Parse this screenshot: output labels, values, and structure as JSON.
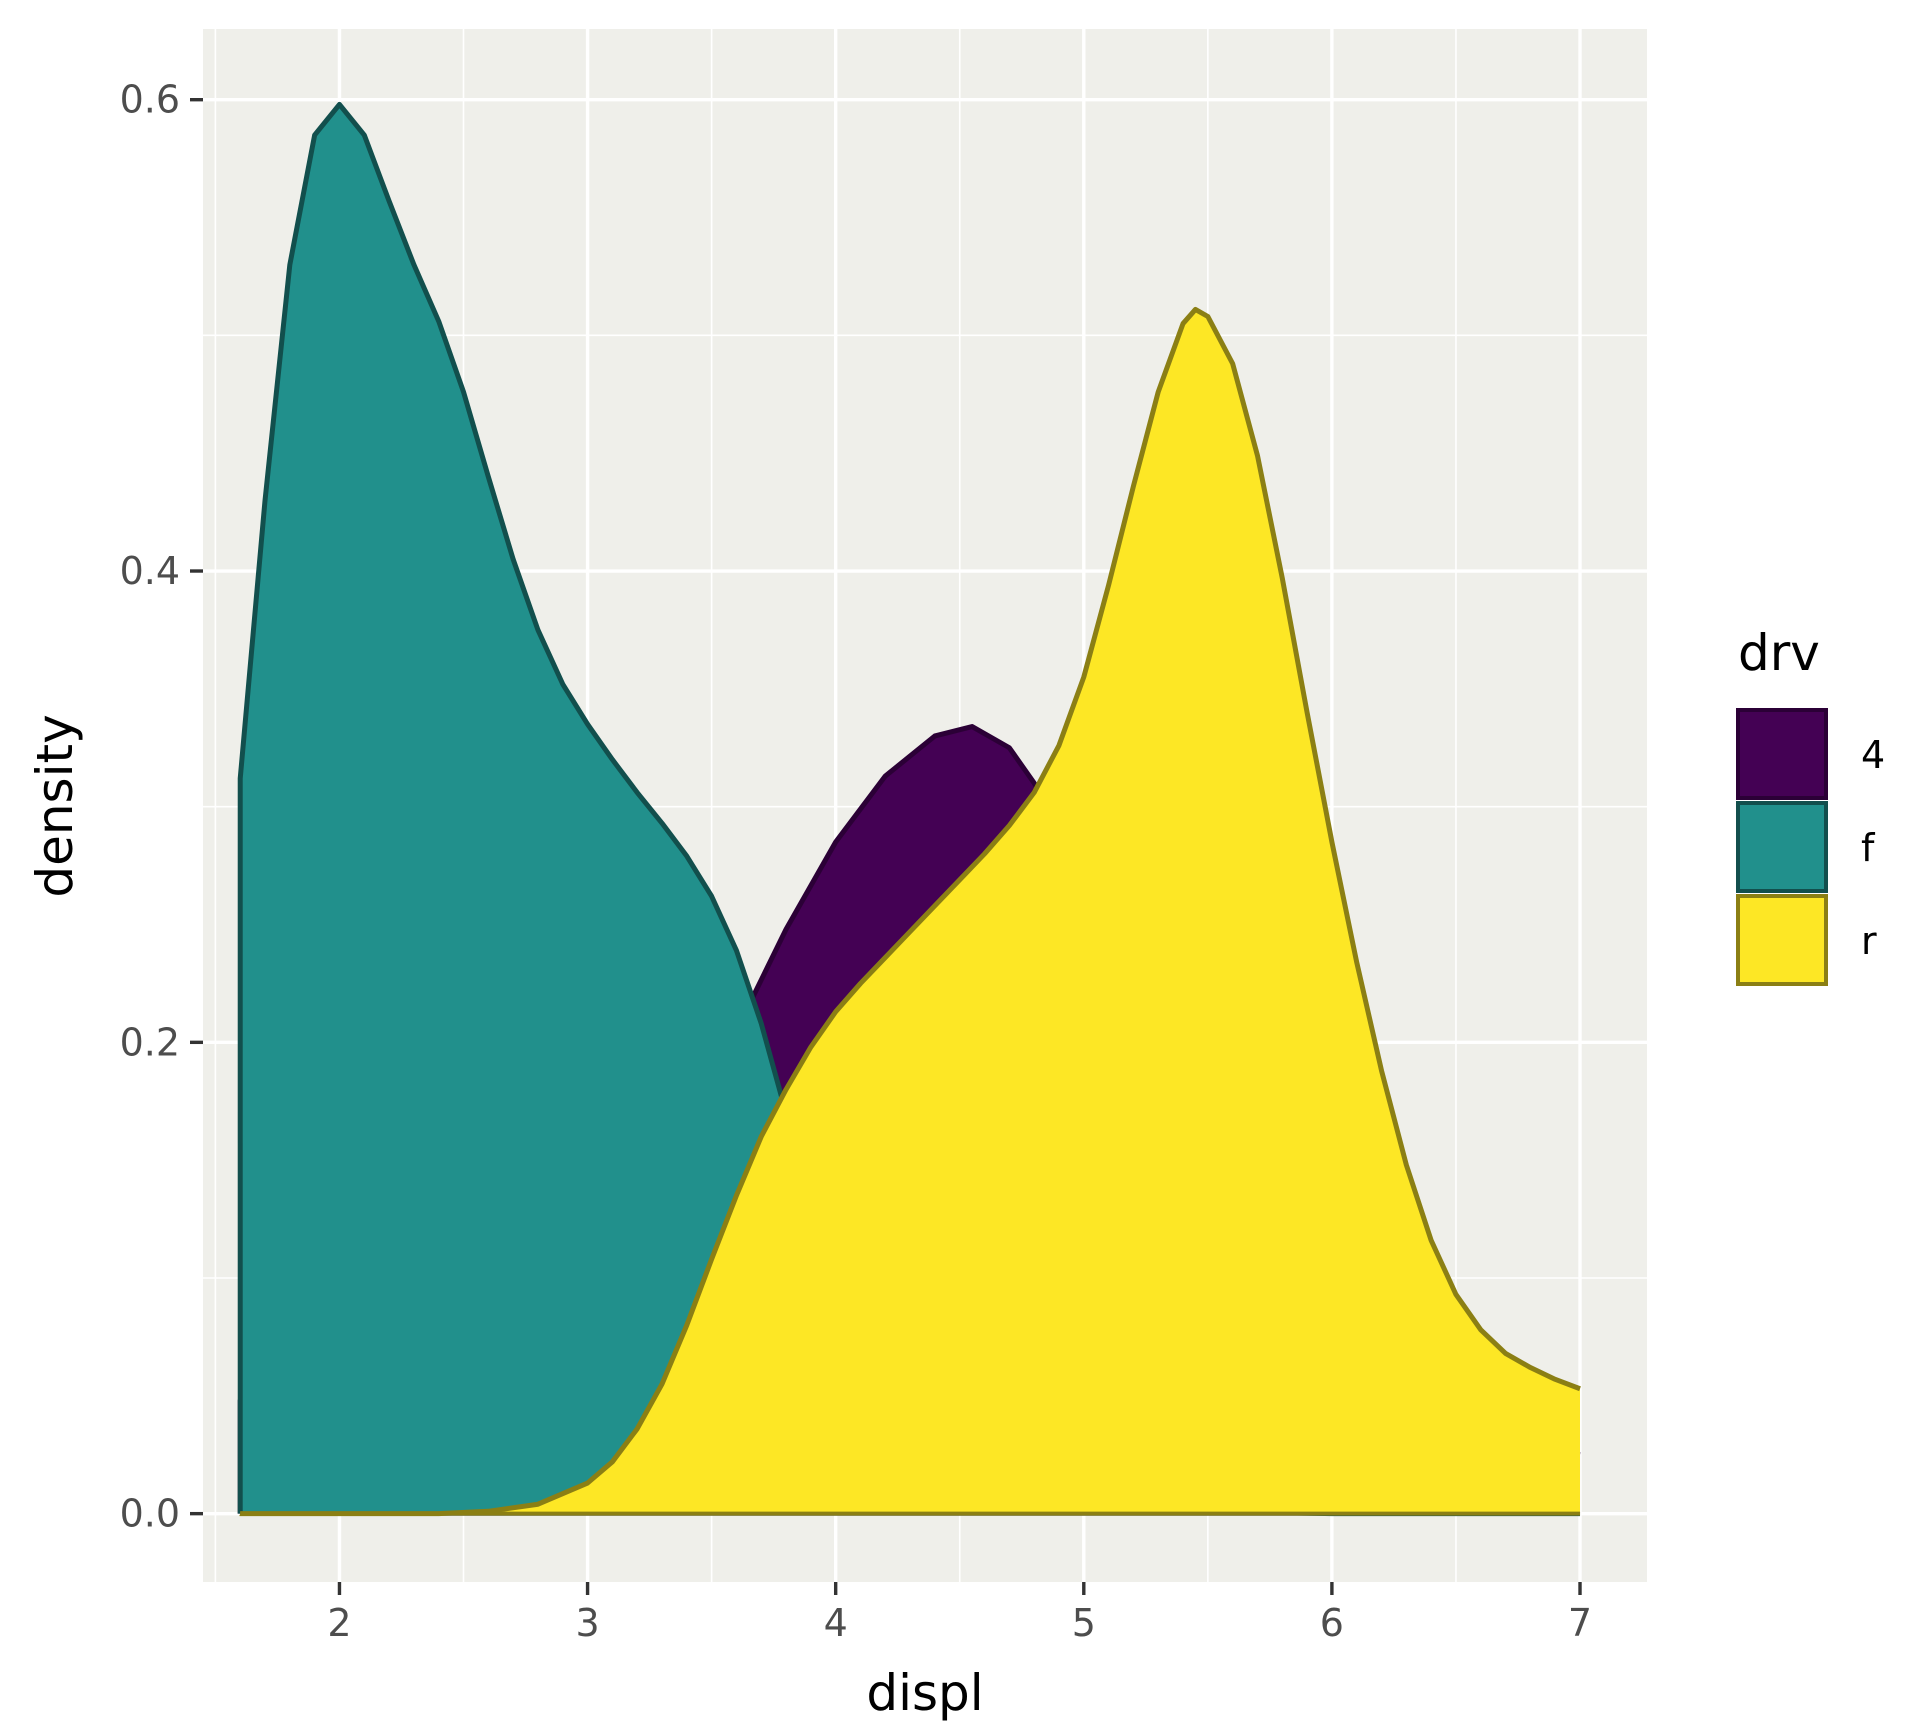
{
  "chart_data": {
    "type": "area",
    "subtype": "density",
    "xlabel": "displ",
    "ylabel": "density",
    "xlim": [
      1.45,
      7.27
    ],
    "ylim": [
      -0.029,
      0.63
    ],
    "x_ticks": [
      2,
      3,
      4,
      5,
      6,
      7
    ],
    "x_tick_labels": [
      "2",
      "3",
      "4",
      "5",
      "6",
      "7"
    ],
    "y_ticks": [
      0.0,
      0.2,
      0.4,
      0.6
    ],
    "y_tick_labels": [
      "0.0",
      "0.2",
      "0.4",
      "0.6"
    ],
    "grid": true,
    "panel_background": "#EFEFEA",
    "legend": {
      "title": "drv",
      "position": "right"
    },
    "series": [
      {
        "name": "4",
        "fill": "#440154",
        "stroke": "#2B0036",
        "points": [
          [
            1.6,
            0.048
          ],
          [
            1.8,
            0.045
          ],
          [
            2.0,
            0.042
          ],
          [
            2.2,
            0.038
          ],
          [
            2.4,
            0.04
          ],
          [
            2.6,
            0.05
          ],
          [
            2.8,
            0.066
          ],
          [
            3.0,
            0.088
          ],
          [
            3.2,
            0.12
          ],
          [
            3.4,
            0.16
          ],
          [
            3.6,
            0.205
          ],
          [
            3.8,
            0.248
          ],
          [
            4.0,
            0.285
          ],
          [
            4.2,
            0.313
          ],
          [
            4.4,
            0.33
          ],
          [
            4.55,
            0.334
          ],
          [
            4.7,
            0.325
          ],
          [
            4.8,
            0.31
          ],
          [
            5.0,
            0.275
          ],
          [
            5.2,
            0.235
          ],
          [
            5.4,
            0.19
          ],
          [
            5.6,
            0.145
          ],
          [
            5.8,
            0.108
          ],
          [
            6.0,
            0.08
          ],
          [
            6.2,
            0.06
          ],
          [
            6.4,
            0.045
          ],
          [
            6.6,
            0.035
          ],
          [
            6.8,
            0.028
          ],
          [
            7.0,
            0.025
          ]
        ]
      },
      {
        "name": "f",
        "fill": "#21908C",
        "stroke": "#124F4D",
        "points": [
          [
            1.6,
            0.312
          ],
          [
            1.7,
            0.43
          ],
          [
            1.8,
            0.53
          ],
          [
            1.9,
            0.585
          ],
          [
            2.0,
            0.598
          ],
          [
            2.1,
            0.585
          ],
          [
            2.2,
            0.557
          ],
          [
            2.3,
            0.53
          ],
          [
            2.4,
            0.506
          ],
          [
            2.5,
            0.476
          ],
          [
            2.6,
            0.44
          ],
          [
            2.7,
            0.405
          ],
          [
            2.8,
            0.375
          ],
          [
            2.9,
            0.352
          ],
          [
            3.0,
            0.335
          ],
          [
            3.1,
            0.32
          ],
          [
            3.2,
            0.306
          ],
          [
            3.3,
            0.293
          ],
          [
            3.4,
            0.279
          ],
          [
            3.5,
            0.262
          ],
          [
            3.6,
            0.239
          ],
          [
            3.7,
            0.208
          ],
          [
            3.8,
            0.17
          ],
          [
            3.9,
            0.13
          ],
          [
            4.0,
            0.095
          ],
          [
            4.1,
            0.065
          ],
          [
            4.2,
            0.042
          ],
          [
            4.3,
            0.026
          ],
          [
            4.4,
            0.016
          ],
          [
            4.6,
            0.006
          ],
          [
            4.8,
            0.003
          ],
          [
            5.0,
            0.002
          ],
          [
            5.5,
            0.001
          ],
          [
            6.0,
            0.0
          ],
          [
            7.0,
            0.0
          ]
        ]
      },
      {
        "name": "r",
        "fill": "#FDE725",
        "stroke": "#8B7F14",
        "points": [
          [
            1.6,
            0.0
          ],
          [
            2.4,
            0.0
          ],
          [
            2.6,
            0.001
          ],
          [
            2.8,
            0.004
          ],
          [
            3.0,
            0.013
          ],
          [
            3.1,
            0.022
          ],
          [
            3.2,
            0.036
          ],
          [
            3.3,
            0.055
          ],
          [
            3.4,
            0.08
          ],
          [
            3.5,
            0.108
          ],
          [
            3.6,
            0.135
          ],
          [
            3.7,
            0.16
          ],
          [
            3.8,
            0.18
          ],
          [
            3.9,
            0.198
          ],
          [
            4.0,
            0.213
          ],
          [
            4.1,
            0.225
          ],
          [
            4.2,
            0.236
          ],
          [
            4.3,
            0.247
          ],
          [
            4.4,
            0.258
          ],
          [
            4.5,
            0.269
          ],
          [
            4.6,
            0.28
          ],
          [
            4.7,
            0.292
          ],
          [
            4.8,
            0.306
          ],
          [
            4.9,
            0.326
          ],
          [
            5.0,
            0.355
          ],
          [
            5.1,
            0.394
          ],
          [
            5.2,
            0.436
          ],
          [
            5.3,
            0.476
          ],
          [
            5.4,
            0.505
          ],
          [
            5.45,
            0.511
          ],
          [
            5.5,
            0.508
          ],
          [
            5.6,
            0.488
          ],
          [
            5.7,
            0.449
          ],
          [
            5.8,
            0.397
          ],
          [
            5.9,
            0.34
          ],
          [
            6.0,
            0.285
          ],
          [
            6.1,
            0.234
          ],
          [
            6.2,
            0.188
          ],
          [
            6.3,
            0.148
          ],
          [
            6.4,
            0.116
          ],
          [
            6.5,
            0.093
          ],
          [
            6.6,
            0.078
          ],
          [
            6.7,
            0.068
          ],
          [
            6.8,
            0.062
          ],
          [
            6.9,
            0.057
          ],
          [
            7.0,
            0.053
          ]
        ]
      }
    ]
  }
}
